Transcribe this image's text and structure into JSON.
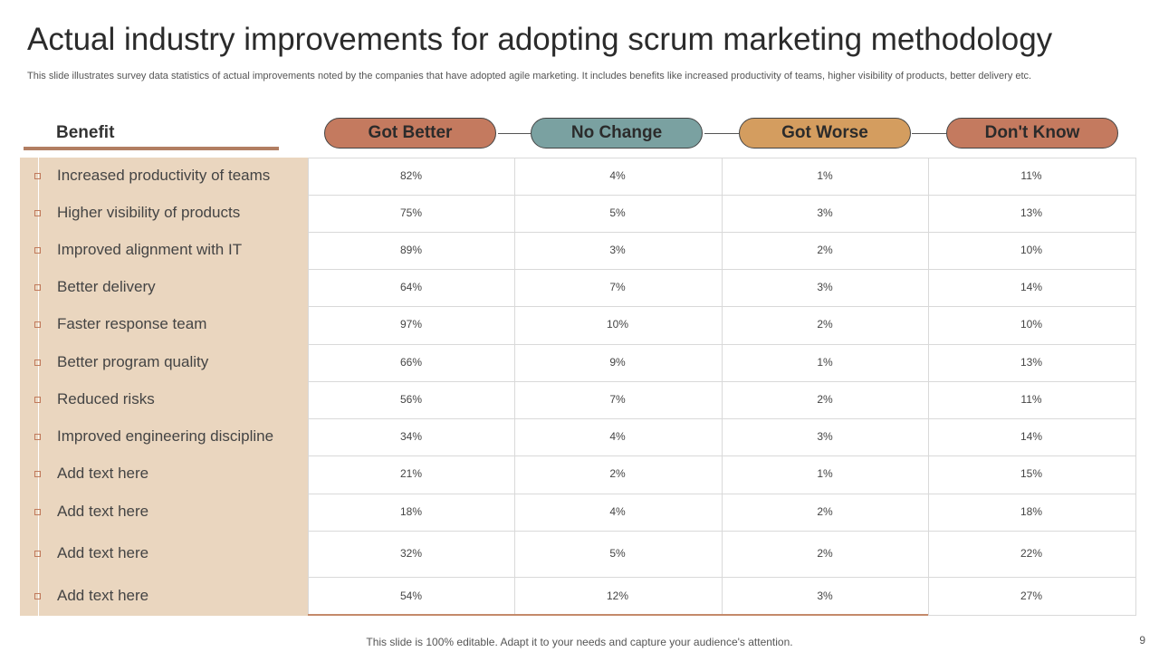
{
  "title": "Actual industry improvements for adopting scrum marketing methodology",
  "subtitle": "This slide illustrates survey data statistics of actual improvements noted by the companies that have adopted agile marketing. It includes benefits like increased productivity of teams, higher visibility of products, better delivery etc.",
  "benefit_header": "Benefit",
  "columns": [
    {
      "label": "Got Better",
      "color": "#c47a5f"
    },
    {
      "label": "No Change",
      "color": "#7aa1a1"
    },
    {
      "label": "Got Worse",
      "color": "#d49d5f"
    },
    {
      "label": "Don't Know",
      "color": "#c47a5f"
    }
  ],
  "rows": [
    {
      "benefit": "Increased productivity of teams",
      "values": [
        "82%",
        "4%",
        "1%",
        "11%"
      ]
    },
    {
      "benefit": "Higher visibility of products",
      "values": [
        "75%",
        "5%",
        "3%",
        "13%"
      ]
    },
    {
      "benefit": "Improved alignment with IT",
      "values": [
        "89%",
        "3%",
        "2%",
        "10%"
      ]
    },
    {
      "benefit": "Better delivery",
      "values": [
        "64%",
        "7%",
        "3%",
        "14%"
      ]
    },
    {
      "benefit": "Faster response  team",
      "values": [
        "97%",
        "10%",
        "2%",
        "10%"
      ]
    },
    {
      "benefit": "Better program quality",
      "values": [
        "66%",
        "9%",
        "1%",
        "13%"
      ]
    },
    {
      "benefit": "Reduced risks",
      "values": [
        "56%",
        "7%",
        "2%",
        "11%"
      ]
    },
    {
      "benefit": "Improved engineering discipline",
      "values": [
        "34%",
        "4%",
        "3%",
        "14%"
      ]
    },
    {
      "benefit": "Add text here",
      "values": [
        "21%",
        "2%",
        "1%",
        "15%"
      ]
    },
    {
      "benefit": "Add text here",
      "values": [
        "18%",
        "4%",
        "2%",
        "18%"
      ]
    },
    {
      "benefit": "Add text here",
      "values": [
        "32%",
        "5%",
        "2%",
        "22%"
      ]
    },
    {
      "benefit": "Add text here",
      "values": [
        "54%",
        "12%",
        "3%",
        "27%"
      ]
    }
  ],
  "footer": "This slide is 100% editable. Adapt it to your needs and capture your audience's attention.",
  "page_number": "9"
}
